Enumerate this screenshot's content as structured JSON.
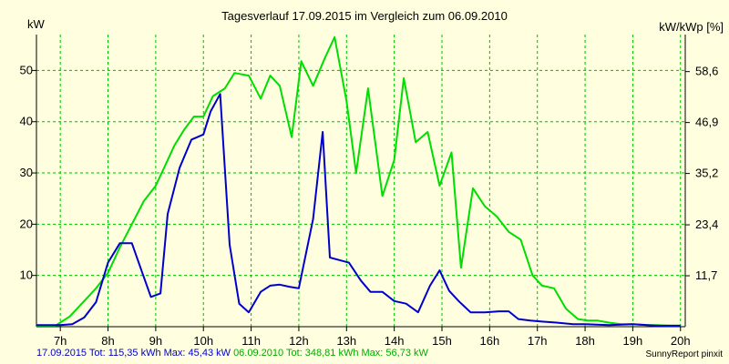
{
  "chart_data": {
    "type": "line",
    "title": "Tagesverlauf 17.09.2015 im Vergleich zum 06.09.2010",
    "ylabel_left": "kW",
    "ylabel_right": "kW/kWp [%]",
    "ylim_left": [
      0,
      57
    ],
    "ylim_right": [
      0,
      67.1
    ],
    "xlim": [
      6.5,
      20.1
    ],
    "grid": true,
    "x_ticks": [
      {
        "value": 7,
        "label": "7h"
      },
      {
        "value": 8,
        "label": "8h"
      },
      {
        "value": 9,
        "label": "9h"
      },
      {
        "value": 10,
        "label": "10h"
      },
      {
        "value": 11,
        "label": "11h"
      },
      {
        "value": 12,
        "label": "12h"
      },
      {
        "value": 13,
        "label": "13h"
      },
      {
        "value": 14,
        "label": "14h"
      },
      {
        "value": 15,
        "label": "15h"
      },
      {
        "value": 16,
        "label": "16h"
      },
      {
        "value": 17,
        "label": "17h"
      },
      {
        "value": 18,
        "label": "18h"
      },
      {
        "value": 19,
        "label": "19h"
      },
      {
        "value": 20,
        "label": "20h"
      }
    ],
    "y_ticks_left": [
      {
        "value": 10,
        "label": "10"
      },
      {
        "value": 20,
        "label": "20"
      },
      {
        "value": 30,
        "label": "30"
      },
      {
        "value": 40,
        "label": "40"
      },
      {
        "value": 50,
        "label": "50"
      }
    ],
    "y_ticks_right": [
      {
        "value": 11.7,
        "label": "11,7"
      },
      {
        "value": 23.4,
        "label": "23,4"
      },
      {
        "value": 35.2,
        "label": "35,2"
      },
      {
        "value": 46.9,
        "label": "46,9"
      },
      {
        "value": 58.6,
        "label": "58,6"
      }
    ],
    "series": [
      {
        "name": "17.09.2015",
        "color": "#0000cc",
        "x": [
          6.5,
          7.0,
          7.25,
          7.5,
          7.75,
          8.0,
          8.25,
          8.5,
          8.7,
          8.9,
          9.1,
          9.25,
          9.5,
          9.75,
          10.0,
          10.15,
          10.35,
          10.55,
          10.75,
          10.95,
          11.2,
          11.4,
          11.6,
          11.8,
          12.0,
          12.3,
          12.5,
          12.65,
          12.85,
          13.05,
          13.3,
          13.5,
          13.75,
          14.0,
          14.25,
          14.5,
          14.75,
          14.95,
          15.15,
          15.35,
          15.6,
          15.9,
          16.2,
          16.4,
          16.6,
          16.85,
          17.1,
          17.4,
          17.75,
          18.0,
          18.5,
          19.0,
          19.3,
          19.5,
          19.7,
          20.0
        ],
        "y": [
          0.3,
          0.3,
          0.5,
          1.8,
          4.8,
          12.5,
          16.3,
          16.3,
          11.0,
          5.8,
          6.5,
          22.0,
          31.0,
          36.5,
          37.5,
          42.0,
          45.4,
          16.0,
          4.5,
          2.8,
          6.8,
          8.0,
          8.2,
          7.8,
          7.5,
          21.0,
          38.0,
          13.5,
          13.0,
          12.5,
          9.0,
          6.8,
          6.8,
          5.0,
          4.5,
          2.8,
          8.0,
          11.0,
          7.0,
          5.0,
          2.8,
          2.8,
          3.0,
          3.0,
          1.5,
          1.2,
          1.0,
          0.8,
          0.5,
          0.5,
          0.3,
          0.5,
          0.3,
          0.2,
          0.2,
          0.2
        ]
      },
      {
        "name": "06.09.2010",
        "color": "#00dd00",
        "x": [
          6.5,
          6.9,
          7.2,
          7.5,
          7.75,
          8.0,
          8.25,
          8.5,
          8.75,
          9.0,
          9.2,
          9.4,
          9.6,
          9.8,
          10.0,
          10.2,
          10.45,
          10.65,
          10.95,
          11.2,
          11.4,
          11.6,
          11.85,
          12.05,
          12.3,
          12.55,
          12.75,
          13.0,
          13.2,
          13.45,
          13.75,
          14.0,
          14.2,
          14.45,
          14.7,
          14.95,
          15.2,
          15.4,
          15.65,
          15.9,
          16.15,
          16.4,
          16.65,
          16.9,
          17.1,
          17.35,
          17.6,
          17.85,
          18.05,
          18.25,
          18.5,
          18.75,
          19.0,
          19.35,
          19.5,
          19.75,
          20.0
        ],
        "y": [
          0.2,
          0.2,
          2.0,
          5.0,
          7.5,
          10.5,
          15.5,
          20.0,
          24.5,
          27.5,
          31.5,
          35.5,
          38.5,
          41.0,
          41.0,
          45.0,
          46.5,
          49.5,
          49.0,
          44.5,
          49.0,
          47.0,
          37.0,
          51.8,
          47.0,
          52.5,
          56.5,
          44.0,
          30.0,
          46.5,
          25.5,
          32.5,
          48.5,
          36.0,
          38.0,
          27.5,
          34.0,
          11.5,
          27.0,
          23.5,
          21.5,
          18.5,
          17.0,
          10.0,
          8.0,
          7.5,
          3.5,
          1.5,
          1.2,
          1.2,
          0.8,
          0.5,
          0.5,
          0.3,
          0.3,
          0.2,
          0.2
        ]
      }
    ],
    "footer": {
      "series1_text": "17.09.2015 Tot: 115,35 kWh Max: 45,43 kW",
      "series2_text": "06.09.2010 Tot: 348,81 kWh Max: 56,73 kW"
    },
    "brand": "SunnyReport pinxit"
  }
}
